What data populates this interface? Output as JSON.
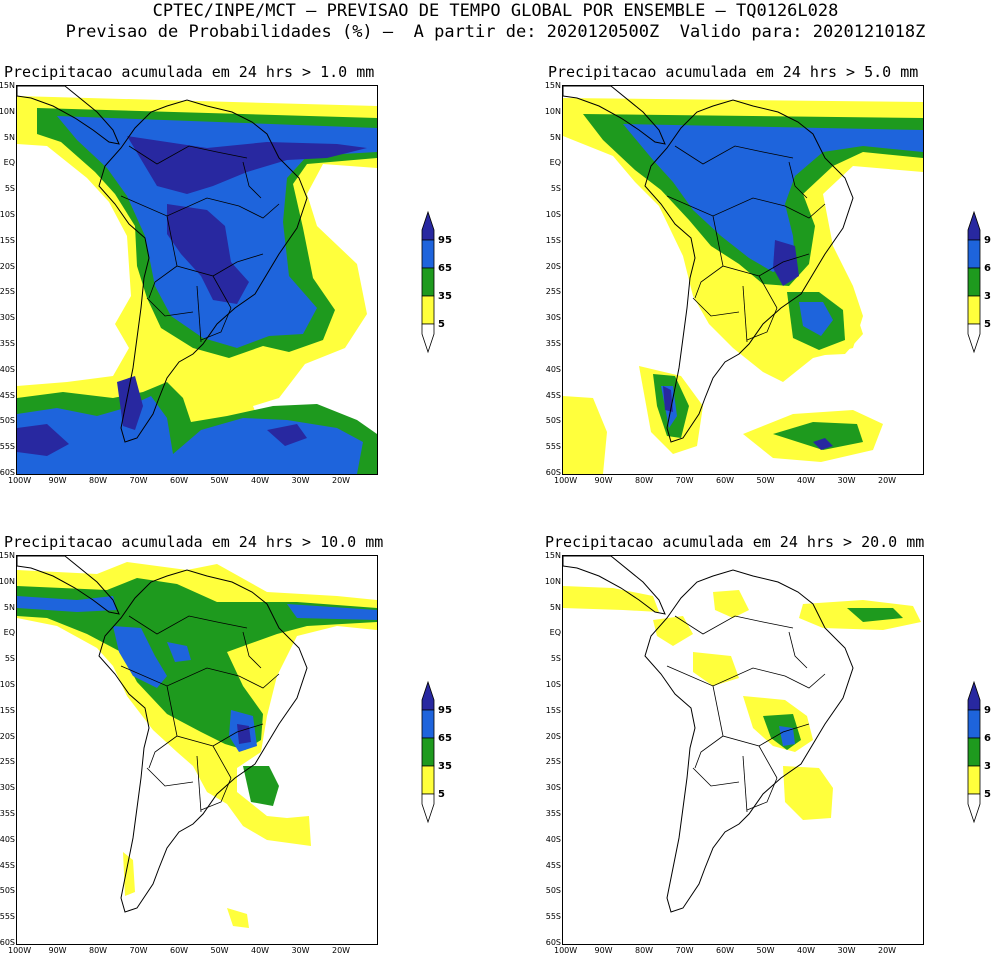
{
  "header": {
    "line1": "CPTEC/INPE/MCT — PREVISAO DE TEMPO GLOBAL POR ENSEMBLE — TQ0126L028",
    "line2": "Previsao de Probabilidades (%) —  A partir de: 2020120500Z  Valido para: 2020121018Z"
  },
  "colors": {
    "c5": "#ffff3c",
    "c35": "#1e9a1e",
    "c65": "#1e64dc",
    "c95": "#2828a0"
  },
  "axes": {
    "lat_labels": [
      "15N",
      "10N",
      "5N",
      "EQ",
      "5S",
      "10S",
      "15S",
      "20S",
      "25S",
      "30S",
      "35S",
      "40S",
      "45S",
      "50S",
      "55S",
      "60S"
    ],
    "lon_labels": [
      "100W",
      "90W",
      "80W",
      "70W",
      "60W",
      "50W",
      "40W",
      "30W",
      "20W"
    ]
  },
  "legend": {
    "labels": [
      "95",
      "65",
      "35",
      "5"
    ]
  },
  "panels": [
    {
      "title": "Precipitacao acumulada em 24 hrs > 1.0 mm"
    },
    {
      "title": "Precipitacao acumulada em 24 hrs > 5.0 mm"
    },
    {
      "title": "Precipitacao acumulada em 24 hrs > 10.0 mm"
    },
    {
      "title": "Precipitacao acumulada em 24 hrs > 20.0 mm"
    }
  ]
}
